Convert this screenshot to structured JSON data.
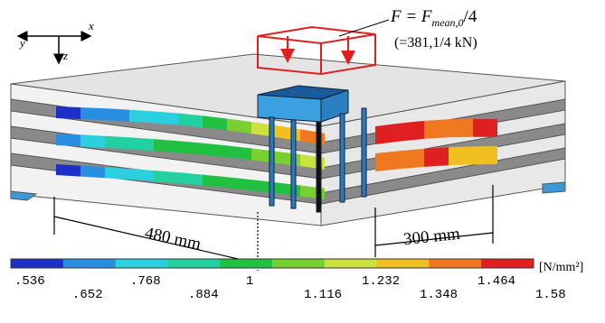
{
  "axes": {
    "x": "x",
    "y": "y",
    "z": "z"
  },
  "load": {
    "lhs": "F = F",
    "sub": "mean,0",
    "rest": "/4",
    "note": "(=381,1/4 kN)"
  },
  "dimensions": {
    "left": "480 mm",
    "right": "300 mm"
  },
  "colorbar": {
    "unit": "[N/mm²]",
    "colors": [
      "#1c2fc8",
      "#2a8ee0",
      "#2ad0e0",
      "#22d0a0",
      "#22c040",
      "#78d030",
      "#cce040",
      "#f0c020",
      "#f07820",
      "#e02020"
    ],
    "labels": [
      ".536",
      ".652",
      ".768",
      ".884",
      "1",
      "1.116",
      "1.232",
      "1.348",
      "1.464",
      "1.58"
    ]
  }
}
